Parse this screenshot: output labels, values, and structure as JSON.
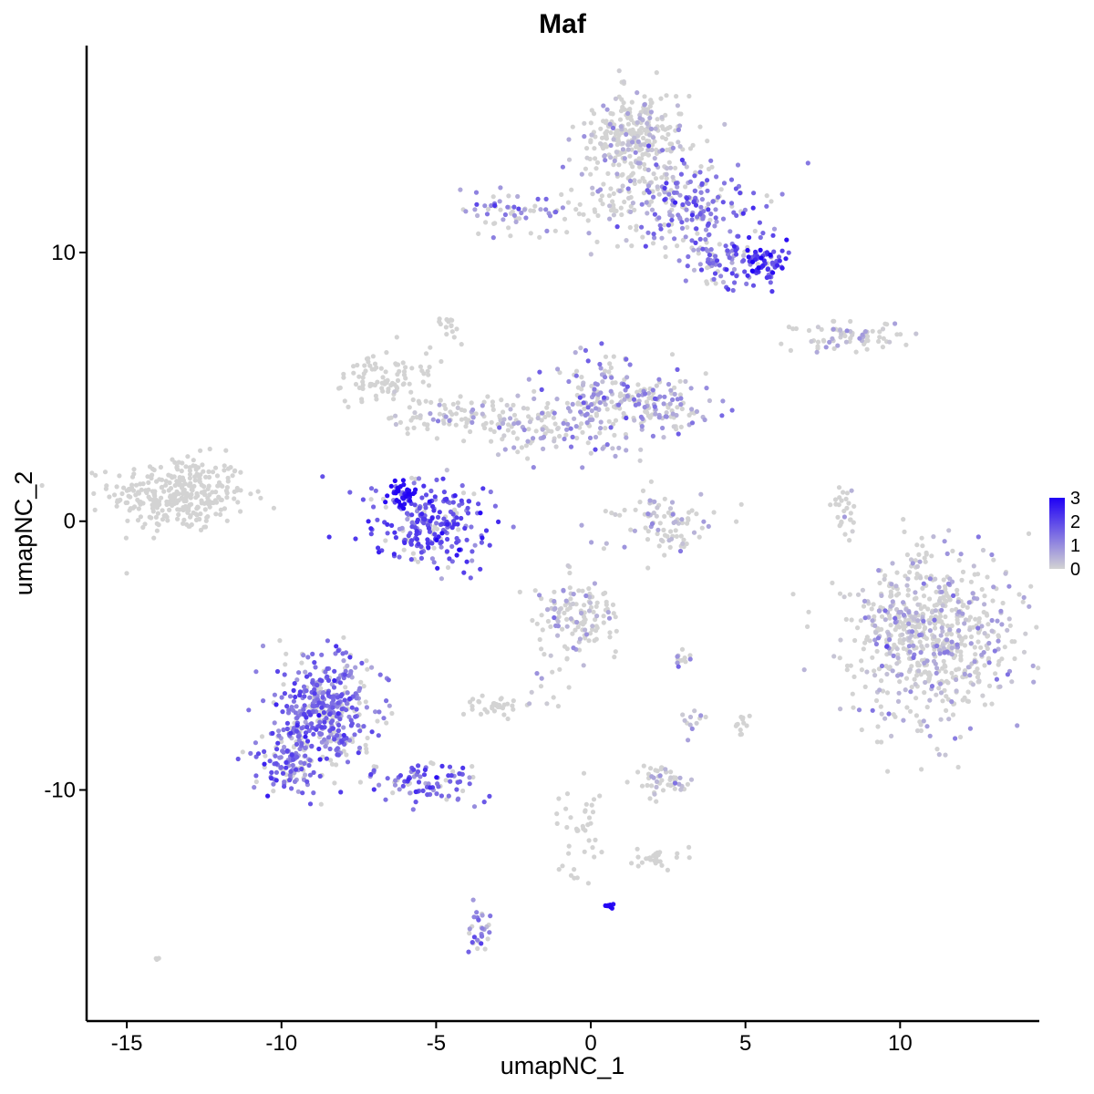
{
  "chart_data": {
    "type": "scatter",
    "title": "Maf",
    "xlabel": "umapNC_1",
    "ylabel": "umapNC_2",
    "xlim": [
      -16.3,
      14.5
    ],
    "ylim": [
      -18.6,
      17.7
    ],
    "x_ticks": [
      -15,
      -10,
      -5,
      0,
      5,
      10
    ],
    "x_tick_labels": [
      "-15",
      "-10",
      "-5",
      "0",
      "5",
      "10"
    ],
    "y_ticks": [
      -10,
      0,
      10
    ],
    "y_tick_labels": [
      "-10",
      "0",
      "10"
    ],
    "grid": false,
    "legend": {
      "position": "right",
      "labels": [
        "3",
        "2",
        "1",
        "0"
      ],
      "values": [
        3,
        2,
        1,
        0
      ],
      "low_color": "#d3d3d3",
      "high_color": "#1f00f5"
    },
    "clusters": [
      {
        "cx": -13.3,
        "cy": 1.0,
        "sx": 1.1,
        "sy": 0.7,
        "n": 320,
        "expr": 0.0
      },
      {
        "cx": -5.2,
        "cy": -0.1,
        "sx": 0.9,
        "sy": 0.8,
        "n": 260,
        "expr": 1.8
      },
      {
        "cx": -6.1,
        "cy": 1.0,
        "sx": 0.22,
        "sy": 0.25,
        "n": 35,
        "expr": 3.0
      },
      {
        "cx": -6.5,
        "cy": 5.3,
        "sx": 0.8,
        "sy": 0.5,
        "n": 90,
        "expr": 0.0
      },
      {
        "cx": -4.2,
        "cy": 3.9,
        "sx": 1.2,
        "sy": 0.4,
        "n": 90,
        "expr": 0.1
      },
      {
        "cx": -1.5,
        "cy": 3.4,
        "sx": 0.9,
        "sy": 0.5,
        "n": 80,
        "expr": 0.5
      },
      {
        "cx": 0.2,
        "cy": 4.5,
        "sx": 0.9,
        "sy": 0.9,
        "n": 150,
        "expr": 0.8
      },
      {
        "cx": 2.2,
        "cy": 4.3,
        "sx": 0.9,
        "sy": 0.5,
        "n": 120,
        "expr": 0.7
      },
      {
        "cx": -4.6,
        "cy": 7.3,
        "sx": 0.2,
        "sy": 0.3,
        "n": 15,
        "expr": 0.0
      },
      {
        "cx": 2.4,
        "cy": 0.0,
        "sx": 0.9,
        "sy": 0.6,
        "n": 90,
        "expr": 0.4
      },
      {
        "cx": 8.2,
        "cy": 0.2,
        "sx": 0.2,
        "sy": 0.6,
        "n": 28,
        "expr": 0.1
      },
      {
        "cx": 1.4,
        "cy": 14.2,
        "sx": 0.9,
        "sy": 0.9,
        "n": 320,
        "expr": 0.1
      },
      {
        "cx": 3.4,
        "cy": 11.8,
        "sx": 1.0,
        "sy": 0.7,
        "n": 170,
        "expr": 1.3
      },
      {
        "cx": 4.2,
        "cy": 9.8,
        "sx": 0.8,
        "sy": 0.6,
        "n": 90,
        "expr": 1.3
      },
      {
        "cx": 5.5,
        "cy": 9.7,
        "sx": 0.4,
        "sy": 0.4,
        "n": 70,
        "expr": 2.2
      },
      {
        "cx": 1.0,
        "cy": 11.6,
        "sx": 1.0,
        "sy": 0.7,
        "n": 80,
        "expr": 0.2
      },
      {
        "cx": -2.5,
        "cy": 11.6,
        "sx": 1.0,
        "sy": 0.4,
        "n": 55,
        "expr": 1.0
      },
      {
        "cx": 8.2,
        "cy": 6.9,
        "sx": 1.0,
        "sy": 0.3,
        "n": 75,
        "expr": 0.2
      },
      {
        "cx": 11.0,
        "cy": -4.3,
        "sx": 1.3,
        "sy": 1.5,
        "n": 700,
        "expr": 0.35
      },
      {
        "cx": -0.5,
        "cy": -3.6,
        "sx": 0.7,
        "sy": 0.7,
        "n": 130,
        "expr": 0.2
      },
      {
        "cx": -3.1,
        "cy": -6.9,
        "sx": 0.5,
        "sy": 0.2,
        "n": 35,
        "expr": 0.0
      },
      {
        "cx": -8.6,
        "cy": -7.0,
        "sx": 0.8,
        "sy": 1.1,
        "n": 420,
        "expr": 1.4
      },
      {
        "cx": -9.8,
        "cy": -8.9,
        "sx": 0.6,
        "sy": 0.6,
        "n": 120,
        "expr": 1.4
      },
      {
        "cx": -5.2,
        "cy": -9.7,
        "sx": 0.9,
        "sy": 0.4,
        "n": 90,
        "expr": 1.5
      },
      {
        "cx": -3.6,
        "cy": -15.3,
        "sx": 0.2,
        "sy": 0.5,
        "n": 30,
        "expr": 1.2
      },
      {
        "cx": 2.3,
        "cy": -9.6,
        "sx": 0.4,
        "sy": 0.3,
        "n": 50,
        "expr": 0.1
      },
      {
        "cx": 2.1,
        "cy": -12.6,
        "sx": 0.4,
        "sy": 0.2,
        "n": 25,
        "expr": 0.0
      },
      {
        "cx": -0.4,
        "cy": -11.5,
        "sx": 0.4,
        "sy": 0.9,
        "n": 40,
        "expr": 0.0
      },
      {
        "cx": 0.6,
        "cy": -14.3,
        "sx": 0.06,
        "sy": 0.06,
        "n": 8,
        "expr": 3.0
      },
      {
        "cx": 4.9,
        "cy": -7.5,
        "sx": 0.15,
        "sy": 0.3,
        "n": 12,
        "expr": 0.0
      },
      {
        "cx": 3.3,
        "cy": -7.5,
        "sx": 0.15,
        "sy": 0.3,
        "n": 12,
        "expr": 0.1
      },
      {
        "cx": 3.0,
        "cy": -5.1,
        "sx": 0.4,
        "sy": 0.2,
        "n": 12,
        "expr": 0.3
      },
      {
        "cx": -13.9,
        "cy": -16.3,
        "sx": 0.1,
        "sy": 0.1,
        "n": 3,
        "expr": 0.0
      },
      {
        "cx": -1.3,
        "cy": -5.8,
        "sx": 0.5,
        "sy": 0.6,
        "n": 14,
        "expr": 0.1
      }
    ]
  }
}
